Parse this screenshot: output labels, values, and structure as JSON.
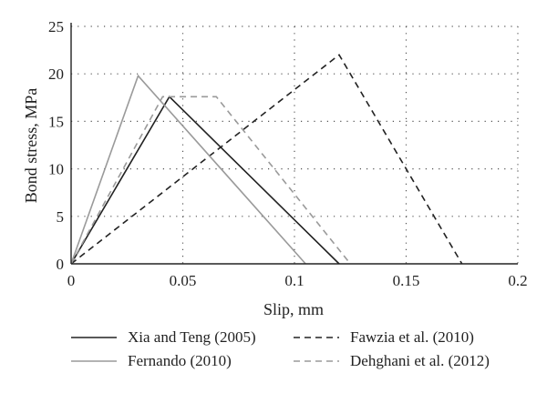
{
  "chart_data": {
    "type": "line",
    "title": "",
    "xlabel": "Slip, mm",
    "ylabel": "Bond stress, MPa",
    "xlim": [
      0,
      0.2
    ],
    "ylim": [
      0,
      25
    ],
    "xticks": [
      "0",
      "0.05",
      "0.1",
      "0.15",
      "0.2"
    ],
    "yticks": [
      "0",
      "5",
      "10",
      "15",
      "20",
      "25"
    ],
    "grid": "dotted",
    "legend_position": "bottom",
    "series": [
      {
        "name": "Xia and Teng (2005)",
        "color": "#222222",
        "dash": "solid",
        "x": [
          0,
          0.044,
          0.12
        ],
        "y": [
          0,
          17.6,
          0
        ]
      },
      {
        "name": "Fawzia et al. (2010)",
        "color": "#222222",
        "dash": "dashed",
        "x": [
          0,
          0.12,
          0.175
        ],
        "y": [
          0,
          22,
          0
        ]
      },
      {
        "name": "Fernando (2010)",
        "color": "#9a9a9a",
        "dash": "solid",
        "x": [
          0,
          0.03,
          0.105
        ],
        "y": [
          0,
          19.8,
          0
        ]
      },
      {
        "name": "Dehghani et al. (2012)",
        "color": "#9a9a9a",
        "dash": "dashed",
        "x": [
          0,
          0.041,
          0.065,
          0.125
        ],
        "y": [
          0,
          17.6,
          17.6,
          0
        ]
      }
    ]
  }
}
